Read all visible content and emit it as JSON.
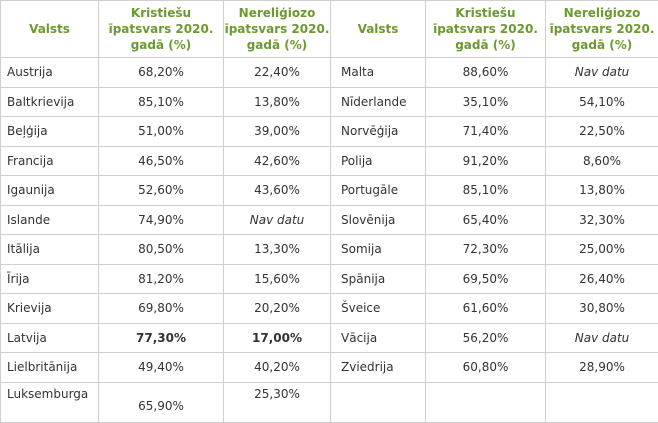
{
  "table": {
    "headers": [
      "Valsts",
      "Kristiešu īpatsvars 2020. gadā (%)",
      "Nereliģiozo īpatsvars 2020. gadā (%)",
      "Valsts",
      "Kristiešu īpatsvars 2020. gadā (%)",
      "Nereliģiozo īpatsvars 2020. gadā (%)"
    ],
    "rows": [
      [
        "Austrija",
        "68,20%",
        "22,40%",
        "Malta",
        "88,60%",
        "Nav datu"
      ],
      [
        "Baltkrievija",
        "85,10%",
        "13,80%",
        "Nīderlande",
        "35,10%",
        "54,10%"
      ],
      [
        "Beļģija",
        "51,00%",
        "39,00%",
        "Norvēģija",
        "71,40%",
        "22,50%"
      ],
      [
        "Francija",
        "46,50%",
        "42,60%",
        "Polija",
        "91,20%",
        "8,60%"
      ],
      [
        "Igaunija",
        "52,60%",
        "43,60%",
        "Portugāle",
        "85,10%",
        "13,80%"
      ],
      [
        "Islande",
        "74,90%",
        "Nav datu",
        "Slovēnija",
        "65,40%",
        "32,30%"
      ],
      [
        "Itālija",
        "80,50%",
        "13,30%",
        "Somija",
        "72,30%",
        "25,00%"
      ],
      [
        "Īrija",
        "81,20%",
        "15,60%",
        "Spānija",
        "69,50%",
        "26,40%"
      ],
      [
        "Krievija",
        "69,80%",
        "20,20%",
        "Šveice",
        "61,60%",
        "30,80%"
      ],
      [
        "Latvija",
        "77,30%",
        "17,00%",
        "Vācija",
        "56,20%",
        "Nav datu"
      ],
      [
        "Lielbritānija",
        "49,40%",
        "40,20%",
        "Zviedrija",
        "60,80%",
        "28,90%"
      ],
      [
        "Luksemburga",
        "65,90%",
        "25,30%"
      ]
    ]
  }
}
